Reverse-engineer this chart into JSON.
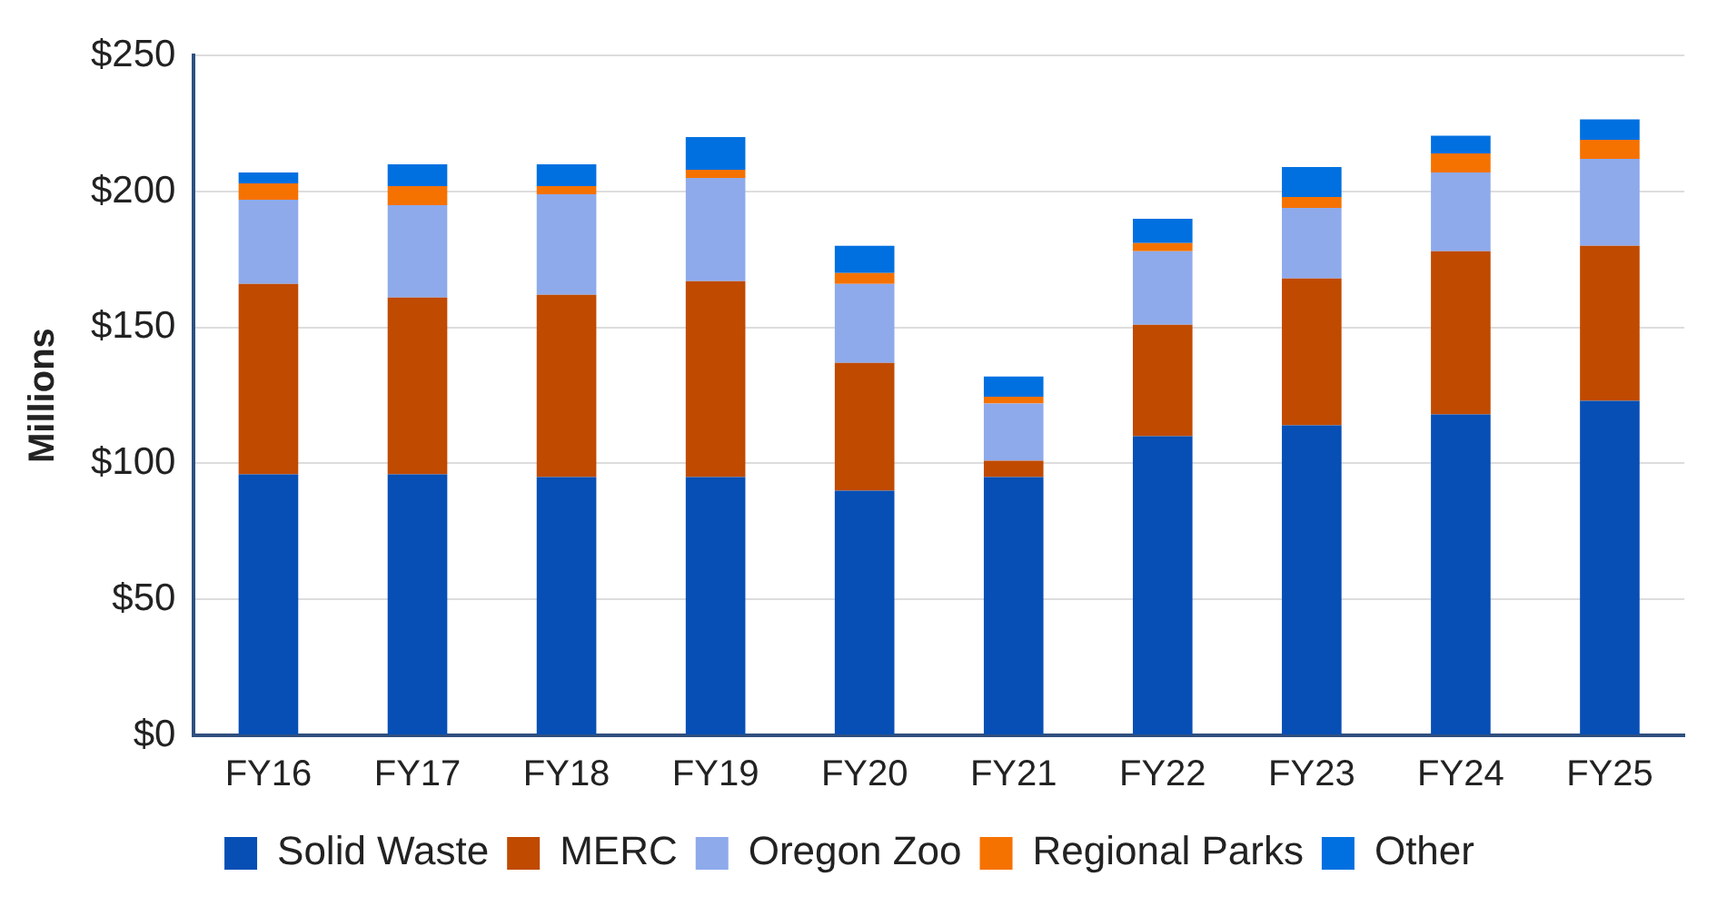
{
  "chart_data": {
    "type": "bar",
    "stacked": true,
    "ylabel": "Millions",
    "categories": [
      "FY16",
      "FY17",
      "FY18",
      "FY19",
      "FY20",
      "FY21",
      "FY22",
      "FY23",
      "FY24",
      "FY25"
    ],
    "series": [
      {
        "name": "Solid Waste",
        "color": "#074fb5",
        "values": [
          96,
          96,
          95,
          95,
          90,
          95,
          110,
          114,
          118,
          123
        ]
      },
      {
        "name": "MERC",
        "color": "#c04a00",
        "values": [
          70,
          65,
          67,
          72,
          47,
          6,
          41,
          54,
          60,
          57
        ]
      },
      {
        "name": "Oregon Zoo",
        "color": "#8eaaeb",
        "values": [
          31,
          34,
          37,
          38,
          29,
          21,
          27,
          26,
          29,
          32
        ]
      },
      {
        "name": "Regional Parks",
        "color": "#f57200",
        "values": [
          6,
          7,
          3,
          3,
          4,
          2.5,
          3,
          4,
          7,
          7
        ]
      },
      {
        "name": "Other",
        "color": "#0070e0",
        "values": [
          4,
          8,
          8,
          12,
          10,
          7.5,
          9,
          11,
          6.5,
          7.5
        ]
      }
    ],
    "ylim": [
      0,
      250
    ],
    "yticks": [
      {
        "value": 0,
        "label": "$0"
      },
      {
        "value": 50,
        "label": "$50"
      },
      {
        "value": 100,
        "label": "$100"
      },
      {
        "value": 150,
        "label": "$150"
      },
      {
        "value": 200,
        "label": "$200"
      },
      {
        "value": 250,
        "label": "$250"
      }
    ],
    "grid": "y",
    "legend": "bottom"
  }
}
